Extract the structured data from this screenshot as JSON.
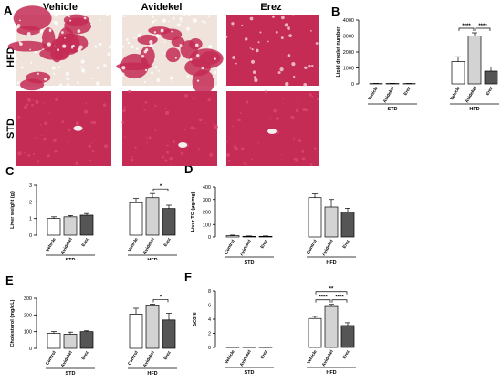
{
  "panelA": {
    "letter": "A",
    "columns": [
      "Vehicle",
      "Avidekel",
      "Erez"
    ],
    "rows": [
      "HFD",
      "STD"
    ],
    "colors": {
      "tissue": "#c42b55",
      "tissueLight": "#d9486f",
      "lipid": "#efe3dc",
      "bg": "#ffffff"
    }
  },
  "panels": [
    {
      "letter": "B",
      "ylabel": "Lipid droplet number",
      "yticks": [
        "0",
        "1000",
        "2000",
        "3000",
        "4000"
      ],
      "ymax": 4000,
      "groups": [
        {
          "label": "STD",
          "categories": [
            "Vehicle",
            "Avidekel",
            "Erez"
          ],
          "values": [
            20,
            25,
            20
          ],
          "errors": [
            10,
            10,
            10
          ]
        },
        {
          "label": "HFD",
          "categories": [
            "Vehicle",
            "Avidekel",
            "Erez"
          ],
          "values": [
            1400,
            3000,
            800
          ],
          "errors": [
            300,
            200,
            250
          ]
        }
      ],
      "sig": [
        {
          "from": 0,
          "to": 1,
          "label": "****",
          "level": 0
        },
        {
          "from": 1,
          "to": 2,
          "label": "****",
          "level": 0
        }
      ]
    },
    {
      "letter": "C",
      "ylabel": "Liver weight (g)",
      "yticks": [
        "0",
        "1",
        "2",
        "3"
      ],
      "ymax": 3,
      "groups": [
        {
          "label": "STD",
          "categories": [
            "Vehicle",
            "Avidekel",
            "Erez"
          ],
          "values": [
            1.0,
            1.1,
            1.2
          ],
          "errors": [
            0.1,
            0.08,
            0.1
          ]
        },
        {
          "label": "HFD",
          "categories": [
            "Vehicle",
            "Avidekel",
            "Erez"
          ],
          "values": [
            1.95,
            2.25,
            1.6
          ],
          "errors": [
            0.25,
            0.25,
            0.2
          ]
        }
      ],
      "sig": [
        {
          "from": 1,
          "to": 2,
          "label": "*",
          "level": 0
        }
      ]
    },
    {
      "letter": "D",
      "ylabel": "Liver TG (µg/mg)",
      "yticks": [
        "0",
        "100",
        "200",
        "300",
        "400"
      ],
      "ymax": 400,
      "groups": [
        {
          "label": "STD",
          "categories": [
            "Control",
            "Avidekel",
            "Erez"
          ],
          "values": [
            10,
            5,
            5
          ],
          "errors": [
            5,
            3,
            3
          ]
        },
        {
          "label": "HFD",
          "categories": [
            "Control",
            "Avidekel",
            "Erez"
          ],
          "values": [
            315,
            240,
            200
          ],
          "errors": [
            30,
            60,
            30
          ]
        }
      ],
      "sig": []
    },
    {
      "letter": "E",
      "ylabel": "Cholesterol (mg/dL)",
      "yticks": [
        "0",
        "100",
        "200",
        "300"
      ],
      "ymax": 300,
      "groups": [
        {
          "label": "STD",
          "categories": [
            "Control",
            "Avidekel",
            "Erez"
          ],
          "values": [
            90,
            85,
            100
          ],
          "errors": [
            10,
            12,
            5
          ]
        },
        {
          "label": "HFD",
          "categories": [
            "Control",
            "Avidekel",
            "Erez"
          ],
          "values": [
            205,
            255,
            170
          ],
          "errors": [
            35,
            10,
            40
          ]
        }
      ],
      "sig": [
        {
          "from": 1,
          "to": 2,
          "label": "*",
          "level": 0
        }
      ]
    },
    {
      "letter": "F",
      "ylabel": "Score",
      "yticks": [
        "0",
        "2",
        "4",
        "6",
        "8"
      ],
      "ymax": 8,
      "groups": [
        {
          "label": "STD",
          "categories": [
            "Vehicle",
            "Avidekel",
            "Erez"
          ],
          "values": [
            0,
            0,
            0
          ],
          "errors": [
            0,
            0,
            0
          ]
        },
        {
          "label": "HFD",
          "categories": [
            "Vehicle",
            "Avidekel",
            "Erez"
          ],
          "values": [
            4.1,
            5.8,
            3.1
          ],
          "errors": [
            0.3,
            0.3,
            0.4
          ]
        }
      ],
      "sig": [
        {
          "from": 0,
          "to": 1,
          "label": "****",
          "level": 0
        },
        {
          "from": 1,
          "to": 2,
          "label": "****",
          "level": 0
        },
        {
          "from": 0,
          "to": 2,
          "label": "**",
          "level": 1
        }
      ]
    }
  ],
  "barColors": [
    "#ffffff",
    "#d3d3d3",
    "#555555"
  ]
}
